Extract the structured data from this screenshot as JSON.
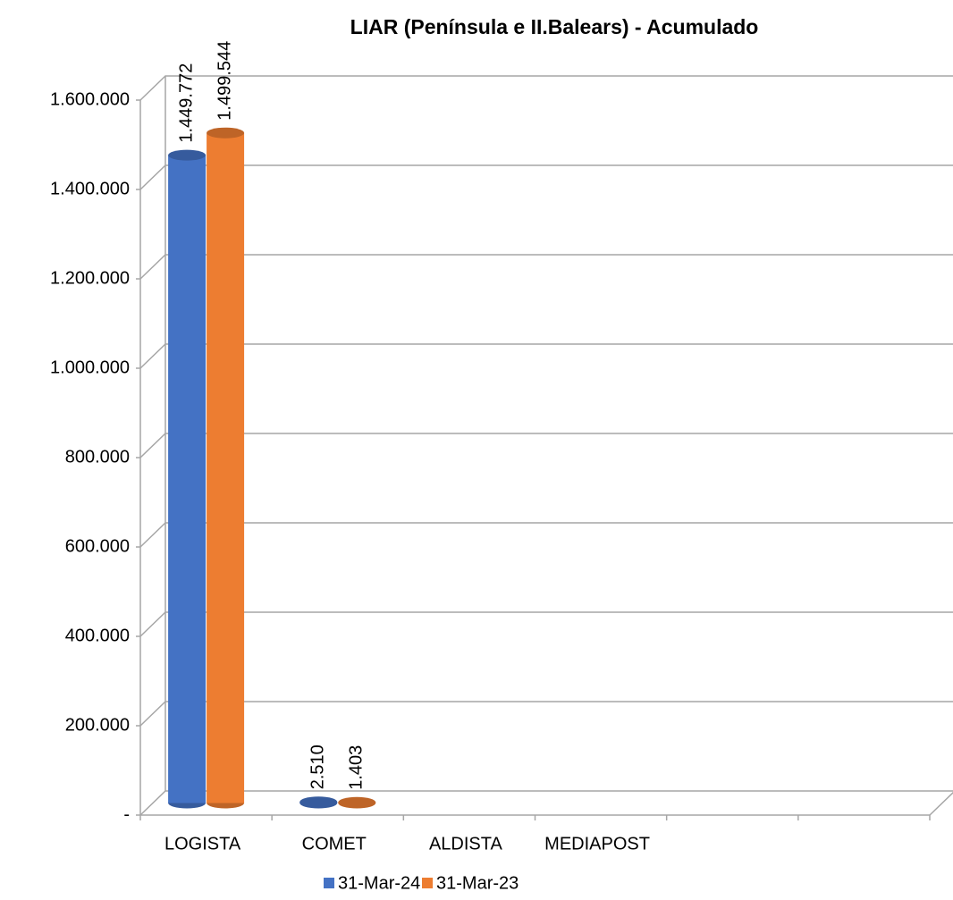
{
  "chart_data": {
    "type": "bar3d",
    "title": "LIAR  (Península e II.Balears) - Acumulado",
    "categories": [
      "LOGISTA",
      "COMET",
      "ALDISTA",
      "MEDIAPOST",
      null,
      null
    ],
    "series": [
      {
        "name": "31-Mar-24",
        "color": "#4472c4",
        "values": [
          1449772,
          2510,
          null,
          null,
          null,
          null
        ],
        "value_labels": [
          "1.449.772",
          "2.510",
          null,
          null,
          null,
          null
        ]
      },
      {
        "name": "31-Mar-23",
        "color": "#ed7d31",
        "values": [
          1499544,
          1403,
          null,
          null,
          null,
          null
        ],
        "value_labels": [
          "1.499.544",
          "1.403",
          null,
          null,
          null,
          null
        ]
      }
    ],
    "ylim": [
      0,
      1600000
    ],
    "yticks": [
      {
        "value": 0,
        "label": "-"
      },
      {
        "value": 200000,
        "label": "200.000"
      },
      {
        "value": 400000,
        "label": "400.000"
      },
      {
        "value": 600000,
        "label": "600.000"
      },
      {
        "value": 800000,
        "label": "800.000"
      },
      {
        "value": 1000000,
        "label": "1.000.000"
      },
      {
        "value": 1200000,
        "label": "1.200.000"
      },
      {
        "value": 1400000,
        "label": "1.400.000"
      },
      {
        "value": 1600000,
        "label": "1.600.000"
      }
    ],
    "grid": true,
    "legend": "bottom"
  }
}
